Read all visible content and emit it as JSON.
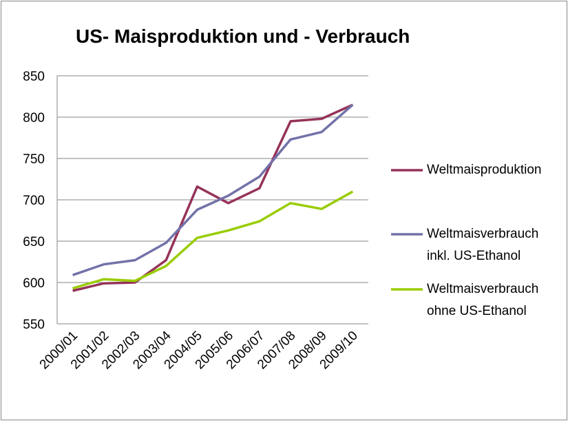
{
  "chart_data": {
    "type": "line",
    "title": "US- Maisproduktion und - Verbrauch",
    "categories": [
      "2000/01",
      "2001/02",
      "2002/03",
      "2003/04",
      "2004/05",
      "2005/06",
      "2006/07",
      "2007/08",
      "2008/09",
      "2009/10"
    ],
    "series": [
      {
        "name": "Weltmaisproduktion",
        "color": "#953359",
        "values": [
          590,
          599,
          600,
          627,
          716,
          696,
          714,
          795,
          798,
          815
        ]
      },
      {
        "name": "Weltmaisverbrauch inkl. US-Ethanol",
        "color": "#7272a9",
        "values": [
          609,
          622,
          627,
          648,
          688,
          705,
          728,
          773,
          782,
          815
        ]
      },
      {
        "name": "Weltmaisverbrauch ohne US-Ethanol",
        "color": "#99cc00",
        "values": [
          593,
          604,
          602,
          620,
          654,
          663,
          674,
          696,
          689,
          710
        ]
      }
    ],
    "ylim": [
      550,
      850
    ],
    "yticks": [
      550,
      600,
      650,
      700,
      750,
      800,
      850
    ],
    "grid": true,
    "legend": "right"
  }
}
